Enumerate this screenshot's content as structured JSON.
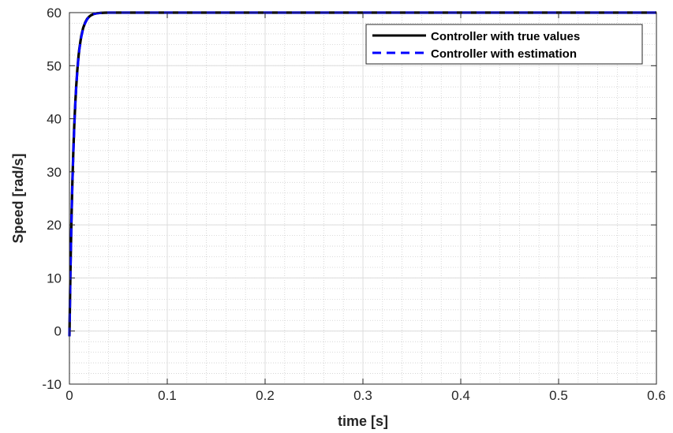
{
  "chart_data": {
    "type": "line",
    "title": "",
    "xlabel": "time [s]",
    "ylabel": "Speed [rad/s]",
    "xlim": [
      0,
      0.6
    ],
    "ylim": [
      -10,
      60
    ],
    "xticks": [
      0,
      0.1,
      0.2,
      0.3,
      0.4,
      0.5,
      0.6
    ],
    "xtick_labels": [
      "0",
      "0.1",
      "0.2",
      "0.3",
      "0.4",
      "0.5",
      "0.6"
    ],
    "yticks": [
      -10,
      0,
      10,
      20,
      30,
      40,
      50,
      60
    ],
    "ytick_labels": [
      "-10",
      "0",
      "10",
      "20",
      "30",
      "40",
      "50",
      "60"
    ],
    "grid": true,
    "minor_grid": true,
    "legend_position": "top-right",
    "series": [
      {
        "name": "Controller with true values",
        "color": "#000000",
        "style": "solid",
        "x": [
          0,
          0.001,
          0.002,
          0.003,
          0.004,
          0.005,
          0.006,
          0.007,
          0.008,
          0.009,
          0.01,
          0.012,
          0.014,
          0.016,
          0.018,
          0.02,
          0.022,
          0.025,
          0.028,
          0.032,
          0.036,
          0.04,
          0.05,
          0.06,
          0.1,
          0.2,
          0.3,
          0.4,
          0.5,
          0.6
        ],
        "values": [
          -1.0,
          11.0,
          20.5,
          28.0,
          34.0,
          39.0,
          43.0,
          46.3,
          49.0,
          51.2,
          53.0,
          55.5,
          57.1,
          58.1,
          58.8,
          59.2,
          59.5,
          59.75,
          59.88,
          59.95,
          59.98,
          60.0,
          60.0,
          60.0,
          60.0,
          60.0,
          60.0,
          60.0,
          60.0,
          60.0
        ]
      },
      {
        "name": "Controller with estimation",
        "color": "#0000ff",
        "style": "dashed",
        "x": [
          0,
          0.001,
          0.002,
          0.003,
          0.004,
          0.005,
          0.006,
          0.007,
          0.008,
          0.009,
          0.01,
          0.012,
          0.014,
          0.016,
          0.018,
          0.02,
          0.022,
          0.025,
          0.028,
          0.032,
          0.036,
          0.04,
          0.05,
          0.06,
          0.1,
          0.2,
          0.3,
          0.4,
          0.5,
          0.6
        ],
        "values": [
          -1.0,
          10.6,
          20.0,
          27.6,
          33.7,
          38.7,
          42.8,
          46.1,
          48.8,
          51.0,
          52.8,
          55.3,
          57.0,
          58.0,
          58.7,
          59.2,
          59.5,
          59.75,
          59.88,
          59.95,
          59.98,
          60.0,
          60.0,
          60.0,
          60.0,
          60.0,
          60.0,
          60.0,
          60.0,
          60.0
        ]
      }
    ]
  }
}
